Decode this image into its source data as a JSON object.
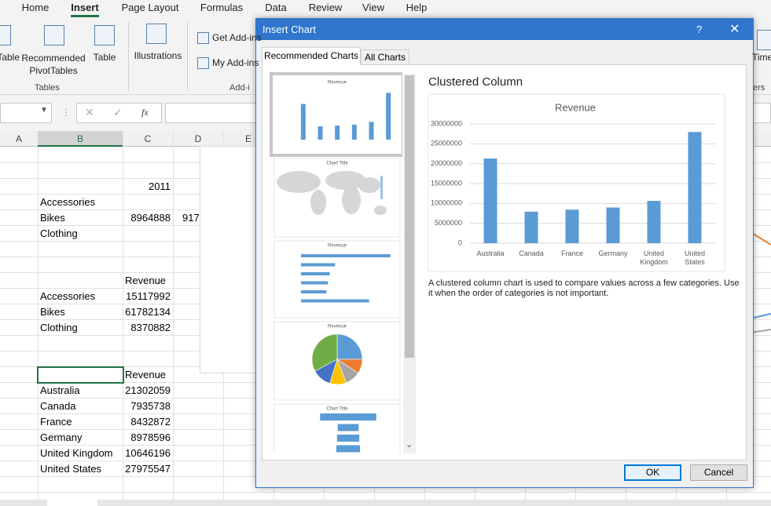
{
  "ribbon": {
    "tabs": [
      "Home",
      "Insert",
      "Page Layout",
      "Formulas",
      "Data",
      "Review",
      "View",
      "Help"
    ],
    "buttons": [
      "Table",
      "Recommended PivotTables",
      "Table",
      "Illustrations",
      "Get Add-ins",
      "My Add-ins",
      "Time"
    ],
    "groups": [
      "Tables",
      "Add-i",
      "ers"
    ]
  },
  "formula_bar": {
    "function_icon": "fx"
  },
  "sheet": {
    "columns": [
      "A",
      "B",
      "C",
      "D",
      "E"
    ],
    "rows": [
      {},
      {},
      {
        "C": 2011
      },
      {
        "B": "Accessories"
      },
      {
        "B": "Bikes",
        "C": 8964888,
        "D": "917"
      },
      {
        "B": "Clothing"
      },
      {},
      {},
      {
        "C": "Revenue"
      },
      {
        "B": "Accessories",
        "C": 15117992
      },
      {
        "B": "Bikes",
        "C": 61782134
      },
      {
        "B": "Clothing",
        "C": 8370882
      },
      {},
      {},
      {
        "C": "Revenue"
      },
      {
        "B": "Australia",
        "C": 21302059
      },
      {
        "B": "Canada",
        "C": 7935738
      },
      {
        "B": "France",
        "C": 8432872
      },
      {
        "B": "Germany",
        "C": 8978596
      },
      {
        "B": "United Kingdom",
        "C": 10646196
      },
      {
        "B": "United States",
        "C": 27975547
      },
      {},
      {}
    ]
  },
  "dialog": {
    "title": "Insert Chart",
    "help": "?",
    "tabs": [
      "Recommended Charts",
      "All Charts"
    ],
    "thumbnails": [
      "Revenue",
      "Chart Title",
      "Revenue",
      "Revenue",
      "Chart Title"
    ],
    "heading": "Clustered Column",
    "description": "A clustered column chart is used to compare values across a few categories. Use it when the order of categories is not important.",
    "buttons": [
      "OK",
      "Cancel"
    ]
  },
  "chart_data": {
    "type": "bar",
    "title": "Revenue",
    "categories": [
      "Australia",
      "Canada",
      "France",
      "Germany",
      "United Kingdom",
      "United States"
    ],
    "values": [
      21302059,
      7935738,
      8432872,
      8978596,
      10646196,
      27975547
    ],
    "color": "#5b9bd5",
    "ylim": [
      0,
      30000000
    ],
    "yticks": [
      0,
      5000000,
      10000000,
      15000000,
      20000000,
      25000000,
      30000000
    ],
    "grid": true
  }
}
